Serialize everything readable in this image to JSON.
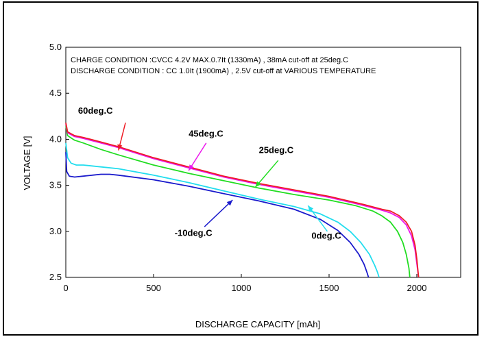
{
  "chart_data": {
    "type": "line",
    "title": "",
    "xlabel": "DISCHARGE CAPACITY  [mAh]",
    "ylabel": "VOLTAGE  [V]",
    "xlim": [
      0,
      2250
    ],
    "ylim": [
      2.5,
      5.0
    ],
    "x_ticks": [
      0,
      500,
      1000,
      1500,
      2000
    ],
    "x_tick_labels": [
      "0",
      "500",
      "1000",
      "1500",
      "2000"
    ],
    "y_ticks": [
      2.5,
      3.0,
      3.5,
      4.0,
      4.5,
      5.0
    ],
    "y_tick_labels": [
      "2.5",
      "3.0",
      "3.5",
      "4.0",
      "4.5",
      "5.0"
    ],
    "grid": false,
    "annotations": [
      "CHARGE CONDITION :CVCC 4.2V MAX.0.7It (1330mA) , 38mA cut-off at  25deg.C",
      "DISCHARGE CONDITION : CC 1.0It (1900mA) , 2.5V cut-off at  VARIOUS TEMPERATURE"
    ],
    "series": [
      {
        "name": "60deg.C",
        "color": "#ee1c25",
        "x": [
          0,
          10,
          50,
          100,
          200,
          300,
          500,
          700,
          900,
          1100,
          1300,
          1500,
          1700,
          1800,
          1850,
          1900,
          1940,
          1970,
          1990,
          2000,
          2005,
          2010
        ],
        "y": [
          4.18,
          4.08,
          4.04,
          4.02,
          3.97,
          3.92,
          3.8,
          3.7,
          3.6,
          3.52,
          3.45,
          3.38,
          3.29,
          3.24,
          3.22,
          3.17,
          3.1,
          3.0,
          2.85,
          2.7,
          2.6,
          2.5
        ]
      },
      {
        "name": "45deg.C",
        "color": "#ec16ec",
        "x": [
          0,
          10,
          50,
          100,
          200,
          300,
          500,
          700,
          900,
          1100,
          1300,
          1500,
          1700,
          1800,
          1850,
          1900,
          1940,
          1970,
          1990,
          2000,
          2010
        ],
        "y": [
          4.17,
          4.07,
          4.03,
          4.01,
          3.96,
          3.91,
          3.79,
          3.69,
          3.59,
          3.51,
          3.44,
          3.37,
          3.28,
          3.23,
          3.2,
          3.15,
          3.07,
          2.95,
          2.8,
          2.65,
          2.5
        ]
      },
      {
        "name": "25deg.C",
        "color": "#22dd22",
        "x": [
          0,
          10,
          50,
          100,
          200,
          300,
          500,
          700,
          900,
          1100,
          1300,
          1500,
          1650,
          1750,
          1800,
          1850,
          1890,
          1920,
          1940,
          1955,
          1960
        ],
        "y": [
          4.15,
          4.04,
          3.99,
          3.96,
          3.89,
          3.83,
          3.72,
          3.63,
          3.55,
          3.47,
          3.4,
          3.34,
          3.28,
          3.22,
          3.17,
          3.1,
          3.0,
          2.88,
          2.75,
          2.6,
          2.5
        ]
      },
      {
        "name": "0deg.C",
        "color": "#22ddee",
        "x": [
          0,
          10,
          30,
          60,
          100,
          200,
          300,
          500,
          700,
          900,
          1100,
          1300,
          1450,
          1550,
          1620,
          1680,
          1730,
          1760,
          1775,
          1785
        ],
        "y": [
          3.96,
          3.8,
          3.74,
          3.72,
          3.72,
          3.7,
          3.68,
          3.61,
          3.53,
          3.44,
          3.35,
          3.27,
          3.19,
          3.1,
          3.0,
          2.88,
          2.75,
          2.63,
          2.56,
          2.5
        ]
      },
      {
        "name": "-10deg.C",
        "color": "#1a1acc",
        "x": [
          0,
          5,
          20,
          50,
          100,
          150,
          200,
          250,
          300,
          500,
          700,
          900,
          1100,
          1300,
          1450,
          1550,
          1620,
          1670,
          1700,
          1715,
          1725
        ],
        "y": [
          3.86,
          3.65,
          3.6,
          3.59,
          3.6,
          3.61,
          3.62,
          3.62,
          3.61,
          3.56,
          3.49,
          3.41,
          3.33,
          3.24,
          3.13,
          3.01,
          2.88,
          2.75,
          2.64,
          2.56,
          2.5
        ]
      }
    ],
    "labels": [
      {
        "text": "60deg.C",
        "tx": 70,
        "ty": 4.28,
        "ax": 340,
        "ay": 4.18,
        "hx": 300,
        "hy": 3.88,
        "arrow_color": "#ee1c25"
      },
      {
        "text": "45deg.C",
        "tx": 700,
        "ty": 4.03,
        "ax": 800,
        "ay": 3.96,
        "hx": 700,
        "hy": 3.66,
        "arrow_color": "#ec16ec"
      },
      {
        "text": "25deg.C",
        "tx": 1100,
        "ty": 3.85,
        "ax": 1210,
        "ay": 3.77,
        "hx": 1080,
        "hy": 3.48,
        "arrow_color": "#22dd22"
      },
      {
        "text": "0deg.C",
        "tx": 1400,
        "ty": 2.92,
        "ax": 1490,
        "ay": 3.0,
        "hx": 1380,
        "hy": 3.28,
        "arrow_color": "#22ddee"
      },
      {
        "text": "-10deg.C",
        "tx": 620,
        "ty": 2.95,
        "ax": 790,
        "ay": 3.05,
        "hx": 950,
        "hy": 3.34,
        "arrow_color": "#1a1acc"
      }
    ]
  }
}
